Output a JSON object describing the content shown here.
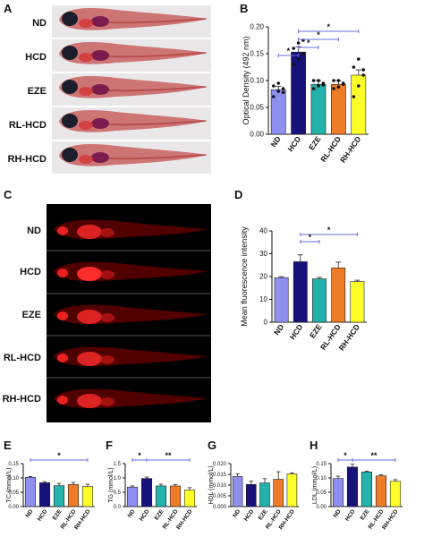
{
  "panels": {
    "A": {
      "label": "A",
      "rows": [
        "ND",
        "HCD",
        "EZE",
        "RL-HCD",
        "RH-HCD"
      ]
    },
    "C": {
      "label": "C",
      "rows": [
        "ND",
        "HCD",
        "EZE",
        "RL-HCD",
        "RH-HCD"
      ]
    },
    "B": {
      "label": "B"
    },
    "D": {
      "label": "D"
    },
    "E": {
      "label": "E"
    },
    "F": {
      "label": "F"
    },
    "G": {
      "label": "G"
    },
    "H": {
      "label": "H"
    }
  },
  "colors": {
    "ND": "#8f8ff0",
    "HCD": "#16127a",
    "EZE": "#23b2ac",
    "RL-HCD": "#ee7b25",
    "RH-HCD": "#ffff2a",
    "sig": "#6b6bd8"
  },
  "chart_data": [
    {
      "id": "B",
      "type": "bar",
      "categories": [
        "ND",
        "HCD",
        "EZE",
        "RL-HCD",
        "RH-HCD"
      ],
      "values": [
        0.083,
        0.153,
        0.093,
        0.093,
        0.11
      ],
      "errors": [
        0.006,
        0.01,
        0.007,
        0.007,
        0.01
      ],
      "points": [
        [
          0.07,
          0.08,
          0.085,
          0.09,
          0.095,
          0.078
        ],
        [
          0.13,
          0.14,
          0.15,
          0.16,
          0.17,
          0.175
        ],
        [
          0.085,
          0.09,
          0.095,
          0.1,
          0.1,
          0.092
        ],
        [
          0.085,
          0.088,
          0.095,
          0.1,
          0.1,
          0.093
        ],
        [
          0.07,
          0.09,
          0.11,
          0.125,
          0.14,
          0.12
        ]
      ],
      "ylabel": "Optical Density (492 nm)",
      "ylim": [
        0,
        0.2
      ],
      "yticks": [
        "0.00",
        "0.05",
        "0.10",
        "0.15",
        "0.20"
      ],
      "sig": [
        {
          "from": 0,
          "to": 1,
          "label": "*",
          "level": 0
        },
        {
          "from": 1,
          "to": 2,
          "label": "*",
          "level": 1
        },
        {
          "from": 1,
          "to": 3,
          "label": "*",
          "level": 2
        },
        {
          "from": 1,
          "to": 4,
          "label": "*",
          "level": 3
        }
      ]
    },
    {
      "id": "D",
      "type": "bar",
      "categories": [
        "ND",
        "HCD",
        "EZE",
        "RL-HCD",
        "RH-HCD"
      ],
      "values": [
        19.5,
        26.5,
        19,
        23.8,
        17.8
      ],
      "errors": [
        0.5,
        3,
        0.6,
        2.5,
        0.6
      ],
      "ylabel": "Mean fluorescence intensity",
      "ylim": [
        0,
        40
      ],
      "yticks": [
        "0",
        "10",
        "20",
        "30",
        "40"
      ],
      "sig": [
        {
          "from": 1,
          "to": 2,
          "label": "*",
          "level": 0
        },
        {
          "from": 1,
          "to": 4,
          "label": "*",
          "level": 1
        }
      ]
    },
    {
      "id": "E",
      "type": "bar",
      "categories": [
        "ND",
        "HCD",
        "EZE",
        "RL-HCD",
        "RH-HCD"
      ],
      "values": [
        0.102,
        0.083,
        0.073,
        0.077,
        0.07
      ],
      "errors": [
        0.003,
        0.004,
        0.008,
        0.007,
        0.008
      ],
      "ylabel": "TC (mmol/L)",
      "ylim": [
        0,
        0.15
      ],
      "yticks": [
        "0.00",
        "0.05",
        "0.10",
        "0.15"
      ],
      "sig": [
        {
          "from": 0,
          "to": 4,
          "label": "*",
          "level": 0
        }
      ]
    },
    {
      "id": "F",
      "type": "bar",
      "categories": [
        "ND",
        "HCD",
        "EZE",
        "RL-HCD",
        "RH-HCD"
      ],
      "values": [
        0.68,
        0.98,
        0.72,
        0.72,
        0.58
      ],
      "errors": [
        0.04,
        0.05,
        0.06,
        0.05,
        0.08
      ],
      "ylabel": "TG (mmol/L)",
      "ylim": [
        0,
        1.5
      ],
      "yticks": [
        "0.0",
        "0.5",
        "1.0",
        "1.5"
      ],
      "sig": [
        {
          "from": 0,
          "to": 1,
          "label": "*",
          "level": 0
        },
        {
          "from": 1,
          "to": 4,
          "label": "**",
          "level": 0
        }
      ]
    },
    {
      "id": "G",
      "type": "bar",
      "categories": [
        "ND",
        "HCD",
        "EZE",
        "RL-HCD",
        "RH-HCD"
      ],
      "values": [
        0.014,
        0.0103,
        0.011,
        0.0127,
        0.0152
      ],
      "errors": [
        0.0012,
        0.0015,
        0.002,
        0.0035,
        0.0005
      ],
      "ylabel": "HDL (mmol/L)",
      "ylim": [
        0,
        0.02
      ],
      "yticks": [
        "0.000",
        "0.005",
        "0.010",
        "0.015",
        "0.020"
      ],
      "sig": []
    },
    {
      "id": "H",
      "type": "bar",
      "categories": [
        "ND",
        "HCD",
        "EZE",
        "RL-HCD",
        "RH-HCD"
      ],
      "values": [
        0.098,
        0.138,
        0.121,
        0.107,
        0.088
      ],
      "errors": [
        0.008,
        0.01,
        0.003,
        0.004,
        0.006
      ],
      "ylabel": "LDL (mmol/L)",
      "ylim": [
        0,
        0.15
      ],
      "yticks": [
        "0.00",
        "0.05",
        "0.10",
        "0.15"
      ],
      "sig": [
        {
          "from": 0,
          "to": 1,
          "label": "*",
          "level": 0
        },
        {
          "from": 1,
          "to": 4,
          "label": "**",
          "level": 0
        }
      ]
    }
  ]
}
